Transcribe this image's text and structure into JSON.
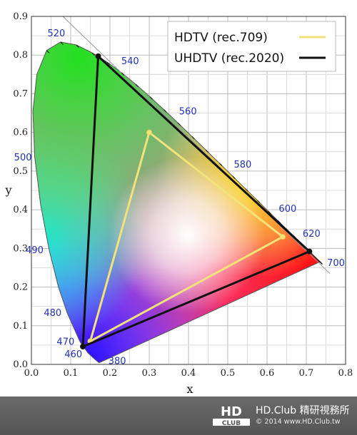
{
  "chart_data": {
    "type": "scatter",
    "title": "",
    "xlabel": "x",
    "ylabel": "y",
    "xlim": [
      0.0,
      0.8
    ],
    "ylim": [
      0.0,
      0.9
    ],
    "x_ticks": [
      "0.0",
      "0.1",
      "0.2",
      "0.3",
      "0.4",
      "0.5",
      "0.6",
      "0.7",
      "0.8"
    ],
    "y_ticks": [
      "0.0",
      "0.1",
      "0.2",
      "0.3",
      "0.4",
      "0.5",
      "0.6",
      "0.7",
      "0.8",
      "0.9"
    ],
    "grid": true,
    "legend_position": "top-right",
    "series": [
      {
        "name": "HDTV (rec.709)",
        "color": "#f2e27a",
        "x": [
          0.64,
          0.3,
          0.15,
          0.64
        ],
        "y": [
          0.33,
          0.6,
          0.06,
          0.33
        ]
      },
      {
        "name": "UHDTV (rec.2020)",
        "color": "#111111",
        "x": [
          0.708,
          0.17,
          0.131,
          0.708
        ],
        "y": [
          0.292,
          0.797,
          0.046,
          0.292
        ]
      }
    ],
    "spectral_locus": {
      "x": [
        0.1741,
        0.1738,
        0.1733,
        0.1726,
        0.1714,
        0.1689,
        0.1644,
        0.1566,
        0.144,
        0.1241,
        0.0913,
        0.0687,
        0.0454,
        0.0235,
        0.0082,
        0.0039,
        0.0139,
        0.0389,
        0.0743,
        0.1142,
        0.1547,
        0.1929,
        0.2296,
        0.2658,
        0.3016,
        0.3373,
        0.3731,
        0.4087,
        0.4441,
        0.4788,
        0.5125,
        0.5448,
        0.5752,
        0.6029,
        0.627,
        0.6482,
        0.6658,
        0.6801,
        0.6915,
        0.7006,
        0.7079,
        0.714,
        0.719,
        0.723,
        0.726,
        0.7283,
        0.73,
        0.7311,
        0.732,
        0.7327,
        0.7334,
        0.734,
        0.7344,
        0.7346,
        0.7347
      ],
      "y": [
        0.005,
        0.0049,
        0.0048,
        0.0048,
        0.0051,
        0.0069,
        0.0109,
        0.0177,
        0.0297,
        0.0578,
        0.1327,
        0.2007,
        0.295,
        0.4127,
        0.5384,
        0.6548,
        0.7502,
        0.812,
        0.8338,
        0.8262,
        0.8059,
        0.7816,
        0.7543,
        0.7243,
        0.6923,
        0.6589,
        0.6245,
        0.5896,
        0.5547,
        0.5202,
        0.4866,
        0.4544,
        0.4242,
        0.3965,
        0.3725,
        0.3514,
        0.334,
        0.3197,
        0.3083,
        0.2993,
        0.292,
        0.2859,
        0.2809,
        0.277,
        0.274,
        0.2717,
        0.27,
        0.2689,
        0.268,
        0.2673,
        0.2666,
        0.266,
        0.2656,
        0.2654,
        0.2653
      ]
    },
    "wavelength_labels": [
      {
        "text": "380",
        "x": 0.1741,
        "y": 0.005
      },
      {
        "text": "460",
        "x": 0.144,
        "y": 0.0297
      },
      {
        "text": "470",
        "x": 0.1241,
        "y": 0.0578
      },
      {
        "text": "480",
        "x": 0.0913,
        "y": 0.1327
      },
      {
        "text": "490",
        "x": 0.0454,
        "y": 0.295
      },
      {
        "text": "500",
        "x": 0.0082,
        "y": 0.5384
      },
      {
        "text": "520",
        "x": 0.0743,
        "y": 0.8338
      },
      {
        "text": "540",
        "x": 0.2296,
        "y": 0.7543
      },
      {
        "text": "560",
        "x": 0.3731,
        "y": 0.6245
      },
      {
        "text": "580",
        "x": 0.5125,
        "y": 0.4866
      },
      {
        "text": "600",
        "x": 0.627,
        "y": 0.3725
      },
      {
        "text": "620",
        "x": 0.6915,
        "y": 0.3083
      },
      {
        "text": "700",
        "x": 0.7347,
        "y": 0.2653
      }
    ]
  },
  "footer": {
    "logo_top": "HD",
    "logo_bottom": "CLUB",
    "brand": "HD.Club 精研視務所",
    "copyright": "© 2014  www.HD.Club.tw"
  }
}
